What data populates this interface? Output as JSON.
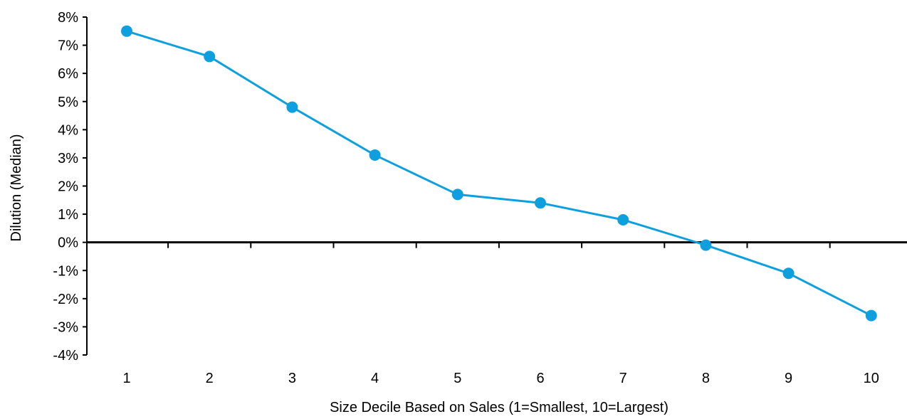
{
  "chart_data": {
    "type": "line",
    "title": "",
    "xlabel": "Size Decile Based on Sales (1=Smallest, 10=Largest)",
    "ylabel": "Dilution (Median)",
    "categories": [
      "1",
      "2",
      "3",
      "4",
      "5",
      "6",
      "7",
      "8",
      "9",
      "10"
    ],
    "series": [
      {
        "values": [
          7.5,
          6.6,
          4.8,
          3.1,
          1.7,
          1.4,
          0.8,
          -0.1,
          -1.1,
          -2.6
        ]
      }
    ],
    "ylim": [
      -4,
      8
    ],
    "y_ticks": [
      8,
      7,
      6,
      5,
      4,
      3,
      2,
      1,
      0,
      -1,
      -2,
      -3,
      -4
    ],
    "y_tick_labels": [
      "8%",
      "7%",
      "6%",
      "5%",
      "4%",
      "3%",
      "2%",
      "1%",
      "0%",
      "-1%",
      "-2%",
      "-3%",
      "-4%"
    ],
    "grid": false,
    "legend": "none",
    "colors": {
      "series": "#0ea0de",
      "axis": "#000000"
    }
  }
}
